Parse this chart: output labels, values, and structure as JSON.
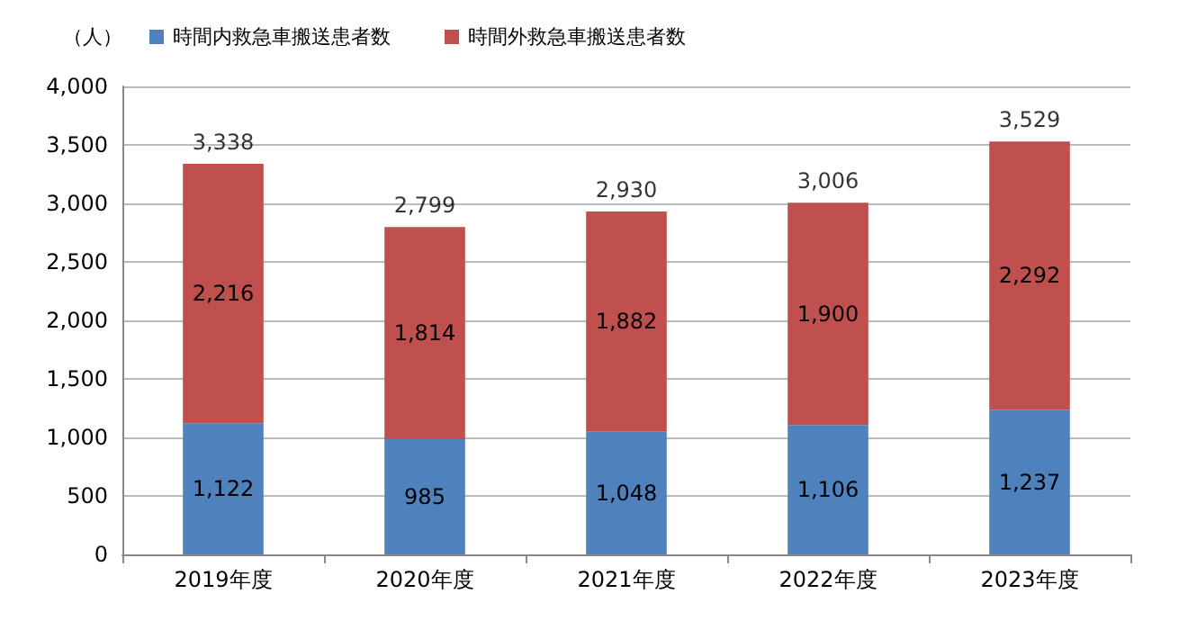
{
  "chart_data": {
    "type": "bar",
    "stacked": true,
    "ylabel": "（人）",
    "categories": [
      "2019年度",
      "2020年度",
      "2021年度",
      "2022年度",
      "2023年度"
    ],
    "series": [
      {
        "name": "時間内救急車搬送患者数",
        "color": "#4f81bd",
        "values": [
          1122,
          985,
          1048,
          1106,
          1237
        ],
        "value_labels": [
          "1,122",
          "985",
          "1,048",
          "1,106",
          "1,237"
        ]
      },
      {
        "name": "時間外救急車搬送患者数",
        "color": "#c0504d",
        "values": [
          2216,
          1814,
          1882,
          1900,
          2292
        ],
        "value_labels": [
          "2,216",
          "1,814",
          "1,882",
          "1,900",
          "2,292"
        ]
      }
    ],
    "totals": [
      "3,338",
      "2,799",
      "2,930",
      "3,006",
      "3,529"
    ],
    "ylim": [
      0,
      4000
    ],
    "yticks": [
      0,
      500,
      {
        "value": 1000,
        "label": "1,000"
      },
      {
        "value": 1500,
        "label": "1,500"
      },
      {
        "value": 2000,
        "label": "2,000"
      },
      {
        "value": 2500,
        "label": "2,500"
      },
      {
        "value": 3000,
        "label": "3,000"
      },
      {
        "value": 3500,
        "label": "3,500"
      },
      {
        "value": 4000,
        "label": "4,000"
      }
    ],
    "grid": "y",
    "legend": "top left"
  }
}
